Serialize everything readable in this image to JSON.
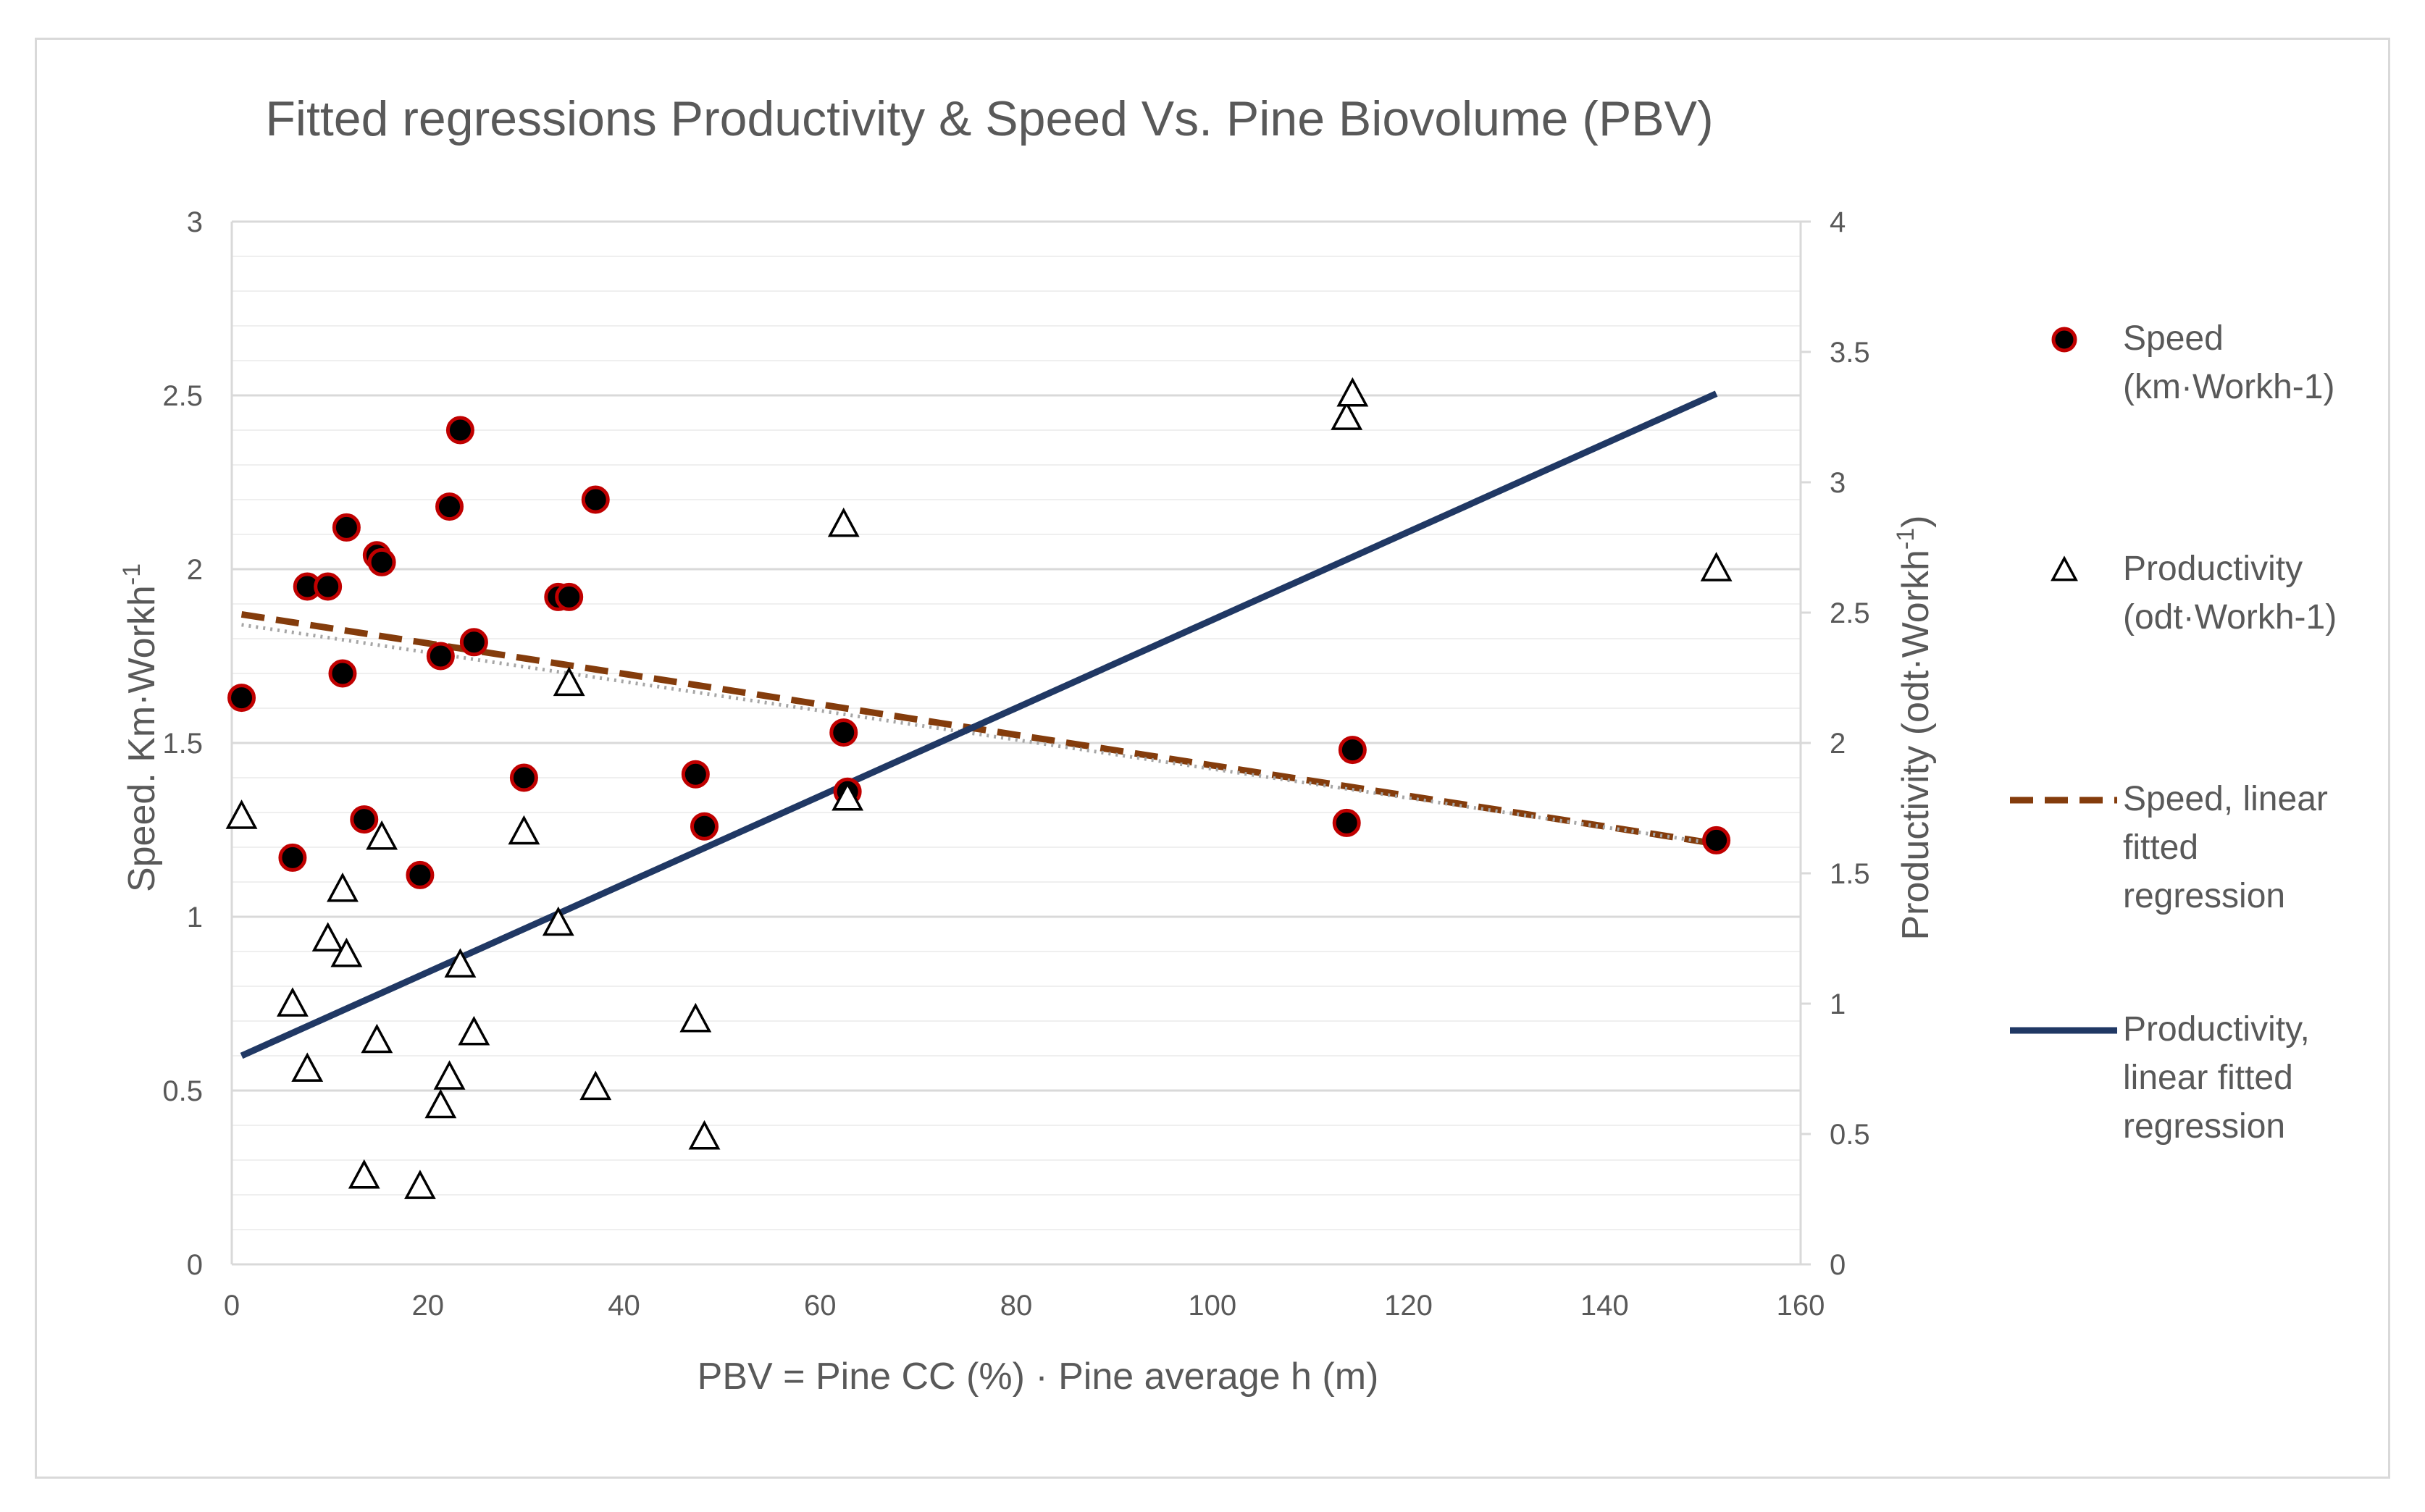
{
  "chart_data": {
    "type": "scatter",
    "title": "Fitted regressions Productivity & Speed Vs. Pine Biovolume (PBV)",
    "xlabel": "PBV = Pine CC (%) · Pine average h (m)",
    "ylabel_left_main": "Speed. Km·Workh",
    "ylabel_left_sup": "-1",
    "ylabel_right_main": "Productivity (odt·Workh",
    "ylabel_right_sup": "-1",
    "ylabel_right_close": ")",
    "xlim": [
      0,
      160
    ],
    "ylim_left": [
      0,
      3
    ],
    "ylim_right": [
      0,
      4
    ],
    "xticks": [
      "0",
      "20",
      "40",
      "60",
      "80",
      "100",
      "120",
      "140",
      "160"
    ],
    "yticks_left": [
      "0",
      "0.5",
      "1",
      "1.5",
      "2",
      "2.5",
      "3"
    ],
    "yticks_right": [
      "0",
      "0.5",
      "1",
      "1.5",
      "2",
      "2.5",
      "3",
      "3.5",
      "4"
    ],
    "series": [
      {
        "name": "Speed (km·Workh-1)",
        "axis": "left",
        "marker": "circle",
        "color": "#000000",
        "edge_color": "#c00000",
        "points": [
          [
            1,
            1.63
          ],
          [
            6.2,
            1.17
          ],
          [
            7.7,
            1.95
          ],
          [
            9.8,
            1.95
          ],
          [
            11.3,
            1.7
          ],
          [
            11.7,
            2.12
          ],
          [
            13.5,
            1.28
          ],
          [
            14.8,
            2.04
          ],
          [
            15.3,
            2.02
          ],
          [
            19.2,
            1.12
          ],
          [
            21.3,
            1.75
          ],
          [
            22.2,
            2.18
          ],
          [
            23.3,
            2.4
          ],
          [
            24.7,
            1.79
          ],
          [
            29.8,
            1.4
          ],
          [
            33.3,
            1.92
          ],
          [
            34.4,
            1.92
          ],
          [
            37.1,
            2.2
          ],
          [
            47.3,
            1.41
          ],
          [
            48.2,
            1.26
          ],
          [
            62.4,
            1.53
          ],
          [
            62.8,
            1.36
          ],
          [
            113.7,
            1.27
          ],
          [
            114.3,
            1.48
          ],
          [
            151.4,
            1.22
          ]
        ]
      },
      {
        "name": "Productivity (odt·Workh-1)",
        "axis": "right",
        "marker": "triangle",
        "color": "#ffffff",
        "edge_color": "#000000",
        "points": [
          [
            1,
            1.72
          ],
          [
            6.2,
            1.0
          ],
          [
            7.7,
            0.75
          ],
          [
            9.8,
            1.25
          ],
          [
            11.3,
            1.44
          ],
          [
            11.7,
            1.19
          ],
          [
            13.5,
            0.34
          ],
          [
            14.8,
            0.86
          ],
          [
            15.3,
            1.64
          ],
          [
            19.2,
            0.3
          ],
          [
            21.3,
            0.61
          ],
          [
            22.2,
            0.72
          ],
          [
            23.3,
            1.15
          ],
          [
            24.7,
            0.89
          ],
          [
            29.8,
            1.66
          ],
          [
            33.3,
            1.31
          ],
          [
            34.4,
            2.23
          ],
          [
            37.1,
            0.68
          ],
          [
            47.3,
            0.94
          ],
          [
            48.2,
            0.49
          ],
          [
            62.4,
            2.84
          ],
          [
            62.8,
            1.79
          ],
          [
            113.7,
            3.25
          ],
          [
            114.3,
            3.34
          ],
          [
            151.4,
            2.67
          ]
        ]
      },
      {
        "name": "Speed, linear fitted regression",
        "axis": "left",
        "type": "line",
        "style": "dashed",
        "color": "#843c0c",
        "points": [
          [
            1,
            1.87
          ],
          [
            151.4,
            1.21
          ]
        ]
      },
      {
        "name": "Speed trend (dotted)",
        "axis": "left",
        "type": "line",
        "style": "dotted",
        "color": "#a6a6a6",
        "points": [
          [
            1,
            1.84
          ],
          [
            151.4,
            1.21
          ]
        ]
      },
      {
        "name": "Productivity, linear fitted regression",
        "axis": "right",
        "type": "line",
        "style": "solid",
        "color": "#203864",
        "points": [
          [
            1,
            0.8
          ],
          [
            151.4,
            3.34
          ]
        ]
      }
    ],
    "legend": {
      "position": "right",
      "items": [
        {
          "lines": [
            "Speed",
            "(km·Workh-1)"
          ],
          "symbol": "circle"
        },
        {
          "lines": [
            "Productivity",
            "(odt·Workh-1)"
          ],
          "symbol": "triangle"
        },
        {
          "lines": [
            "Speed, linear",
            "fitted",
            "regression"
          ],
          "symbol": "dashed-line"
        },
        {
          "lines": [
            "Productivity,",
            "linear fitted",
            "regression"
          ],
          "symbol": "solid-line"
        }
      ]
    }
  }
}
